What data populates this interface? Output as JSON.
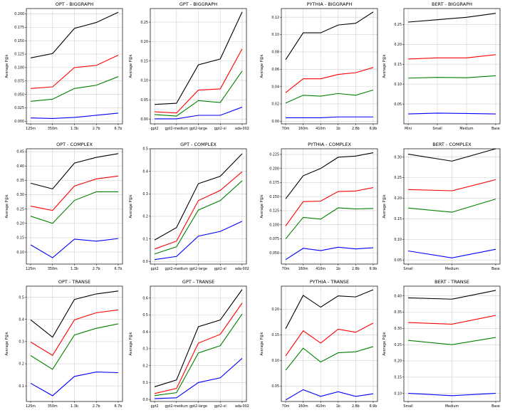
{
  "figure": {
    "colors": {
      "black": "#000000",
      "red": "#ff0000",
      "green": "#008000",
      "blue": "#0000ff"
    }
  },
  "chart_data": [
    {
      "type": "line",
      "title": "OPT - BIGGRAPH",
      "ylabel": "Average P@k",
      "categories": [
        "125m",
        "350m",
        "1.3b",
        "2.7b",
        "6.7b"
      ],
      "ylim": [
        -0.005,
        0.21
      ],
      "yticks": [
        0.0,
        0.025,
        0.05,
        0.075,
        0.1,
        0.125,
        0.15,
        0.175,
        0.2
      ],
      "yticklabels": [
        "0.000",
        "0.025",
        "0.050",
        "0.075",
        "0.100",
        "0.125",
        "0.150",
        "0.175",
        "0.200"
      ],
      "series": [
        {
          "name": "black",
          "color": "#000000",
          "values": [
            0.118,
            0.126,
            0.173,
            0.184,
            0.203
          ]
        },
        {
          "name": "red",
          "color": "#ff0000",
          "values": [
            0.061,
            0.064,
            0.1,
            0.104,
            0.123
          ]
        },
        {
          "name": "green",
          "color": "#008000",
          "values": [
            0.037,
            0.041,
            0.061,
            0.067,
            0.083
          ]
        },
        {
          "name": "blue",
          "color": "#0000ff",
          "values": [
            0.006,
            0.005,
            0.007,
            0.011,
            0.015
          ]
        }
      ]
    },
    {
      "type": "line",
      "title": "GPT - BIGGRAPH",
      "ylabel": "Average P@k",
      "categories": [
        "gpt2",
        "gpt2-medium",
        "gpt2-large",
        "gpt2-xl",
        "ada-002"
      ],
      "ylim": [
        -0.012,
        0.285
      ],
      "yticks": [
        0.0,
        0.05,
        0.1,
        0.15,
        0.2,
        0.25
      ],
      "yticklabels": [
        "0.00",
        "0.05",
        "0.10",
        "0.15",
        "0.20",
        "0.25"
      ],
      "series": [
        {
          "name": "black",
          "color": "#000000",
          "values": [
            0.038,
            0.041,
            0.14,
            0.155,
            0.276
          ]
        },
        {
          "name": "red",
          "color": "#ff0000",
          "values": [
            0.019,
            0.016,
            0.075,
            0.078,
            0.181
          ]
        },
        {
          "name": "green",
          "color": "#008000",
          "values": [
            0.012,
            0.008,
            0.048,
            0.043,
            0.124
          ]
        },
        {
          "name": "blue",
          "color": "#0000ff",
          "values": [
            0.001,
            0.001,
            0.01,
            0.01,
            0.031
          ]
        }
      ]
    },
    {
      "type": "line",
      "title": "PYTHIA - BIGGRAPH",
      "ylabel": "Average P@k",
      "categories": [
        "70m",
        "160m",
        "410m",
        "1b",
        "2.8b",
        "6.9b"
      ],
      "ylim": [
        -0.003,
        0.13
      ],
      "yticks": [
        0.0,
        0.02,
        0.04,
        0.06,
        0.08,
        0.1,
        0.12
      ],
      "yticklabels": [
        "0.00",
        "0.02",
        "0.04",
        "0.06",
        "0.08",
        "0.10",
        "0.12"
      ],
      "series": [
        {
          "name": "black",
          "color": "#000000",
          "values": [
            0.071,
            0.102,
            0.102,
            0.111,
            0.113,
            0.126
          ]
        },
        {
          "name": "red",
          "color": "#ff0000",
          "values": [
            0.033,
            0.049,
            0.049,
            0.054,
            0.056,
            0.062
          ]
        },
        {
          "name": "green",
          "color": "#008000",
          "values": [
            0.021,
            0.03,
            0.029,
            0.032,
            0.03,
            0.036
          ]
        },
        {
          "name": "blue",
          "color": "#0000ff",
          "values": [
            0.004,
            0.004,
            0.004,
            0.005,
            0.005,
            0.005
          ]
        }
      ]
    },
    {
      "type": "line",
      "title": "BERT - BIGGRAPH",
      "ylabel": "Average P@k",
      "categories": [
        "Mini",
        "Small",
        "Medium",
        "Base"
      ],
      "ylim": [
        0.0,
        0.29
      ],
      "yticks": [
        0.05,
        0.1,
        0.15,
        0.2,
        0.25
      ],
      "yticklabels": [
        "0.05",
        "0.10",
        "0.15",
        "0.20",
        "0.25"
      ],
      "series": [
        {
          "name": "black",
          "color": "#000000",
          "values": [
            0.256,
            0.262,
            0.268,
            0.278
          ]
        },
        {
          "name": "red",
          "color": "#ff0000",
          "values": [
            0.163,
            0.166,
            0.166,
            0.174
          ]
        },
        {
          "name": "green",
          "color": "#008000",
          "values": [
            0.115,
            0.117,
            0.116,
            0.121
          ]
        },
        {
          "name": "blue",
          "color": "#0000ff",
          "values": [
            0.025,
            0.027,
            0.026,
            0.025
          ]
        }
      ]
    },
    {
      "type": "line",
      "title": "OPT - COMPLEX",
      "ylabel": "Average P@k",
      "categories": [
        "125m",
        "350m",
        "1.3b",
        "2.7b",
        "6.7b"
      ],
      "ylim": [
        0.058,
        0.46
      ],
      "yticks": [
        0.1,
        0.15,
        0.2,
        0.25,
        0.3,
        0.35,
        0.4,
        0.45
      ],
      "yticklabels": [
        "0.10",
        "0.15",
        "0.20",
        "0.25",
        "0.30",
        "0.35",
        "0.40",
        "0.45"
      ],
      "series": [
        {
          "name": "black",
          "color": "#000000",
          "values": [
            0.34,
            0.32,
            0.41,
            0.43,
            0.443
          ]
        },
        {
          "name": "red",
          "color": "#ff0000",
          "values": [
            0.26,
            0.245,
            0.33,
            0.355,
            0.365
          ]
        },
        {
          "name": "green",
          "color": "#008000",
          "values": [
            0.225,
            0.2,
            0.28,
            0.31,
            0.31
          ]
        },
        {
          "name": "blue",
          "color": "#0000ff",
          "values": [
            0.125,
            0.08,
            0.145,
            0.138,
            0.147
          ]
        }
      ]
    },
    {
      "type": "line",
      "title": "GPT - COMPLEX",
      "ylabel": "Average P@k",
      "categories": [
        "gpt2",
        "gpt2-medium",
        "gpt2-large",
        "gpt2-xl",
        "ada-002"
      ],
      "ylim": [
        -0.012,
        0.5
      ],
      "yticks": [
        0.0,
        0.1,
        0.2,
        0.3,
        0.4,
        0.5
      ],
      "yticklabels": [
        "0.0",
        "0.1",
        "0.2",
        "0.3",
        "0.4",
        "0.5"
      ],
      "series": [
        {
          "name": "black",
          "color": "#000000",
          "values": [
            0.095,
            0.15,
            0.345,
            0.378,
            0.478
          ]
        },
        {
          "name": "red",
          "color": "#ff0000",
          "values": [
            0.055,
            0.09,
            0.27,
            0.315,
            0.398
          ]
        },
        {
          "name": "green",
          "color": "#008000",
          "values": [
            0.033,
            0.065,
            0.228,
            0.27,
            0.358
          ]
        },
        {
          "name": "blue",
          "color": "#0000ff",
          "values": [
            0.008,
            0.022,
            0.112,
            0.133,
            0.178
          ]
        }
      ]
    },
    {
      "type": "line",
      "title": "PYTHIA - COMPLEX",
      "ylabel": "Average P@k",
      "categories": [
        "70m",
        "160m",
        "410m",
        "1b",
        "2.8b",
        "6.9b"
      ],
      "ylim": [
        0.03,
        0.235
      ],
      "yticks": [
        0.05,
        0.075,
        0.1,
        0.125,
        0.15,
        0.175,
        0.2,
        0.225
      ],
      "yticklabels": [
        "0.050",
        "0.075",
        "0.100",
        "0.125",
        "0.150",
        "0.175",
        "0.200",
        "0.225"
      ],
      "series": [
        {
          "name": "black",
          "color": "#000000",
          "values": [
            0.146,
            0.187,
            0.2,
            0.22,
            0.222,
            0.228
          ]
        },
        {
          "name": "red",
          "color": "#ff0000",
          "values": [
            0.098,
            0.141,
            0.142,
            0.159,
            0.16,
            0.166
          ]
        },
        {
          "name": "green",
          "color": "#008000",
          "values": [
            0.075,
            0.113,
            0.11,
            0.13,
            0.128,
            0.129
          ]
        },
        {
          "name": "blue",
          "color": "#0000ff",
          "values": [
            0.038,
            0.058,
            0.054,
            0.06,
            0.057,
            0.059
          ]
        }
      ]
    },
    {
      "type": "line",
      "title": "BERT - COMPLEX",
      "ylabel": "Average P@k",
      "categories": [
        "Small",
        "Medium",
        "Base"
      ],
      "ylim": [
        0.04,
        0.32
      ],
      "yticks": [
        0.05,
        0.1,
        0.15,
        0.2,
        0.25,
        0.3
      ],
      "yticklabels": [
        "0.05",
        "0.10",
        "0.15",
        "0.20",
        "0.25",
        "0.30"
      ],
      "series": [
        {
          "name": "black",
          "color": "#000000",
          "values": [
            0.307,
            0.29,
            0.32
          ]
        },
        {
          "name": "red",
          "color": "#ff0000",
          "values": [
            0.221,
            0.218,
            0.245
          ]
        },
        {
          "name": "green",
          "color": "#008000",
          "values": [
            0.176,
            0.166,
            0.198
          ]
        },
        {
          "name": "blue",
          "color": "#0000ff",
          "values": [
            0.072,
            0.055,
            0.076
          ]
        }
      ]
    },
    {
      "type": "line",
      "title": "OPT - TRANSE",
      "ylabel": "Average P@k",
      "categories": [
        "125m",
        "350m",
        "1.3b",
        "2.7b",
        "6.7b"
      ],
      "ylim": [
        0.03,
        0.55
      ],
      "yticks": [
        0.1,
        0.2,
        0.3,
        0.4,
        0.5
      ],
      "yticklabels": [
        "0.1",
        "0.2",
        "0.3",
        "0.4",
        "0.5"
      ],
      "series": [
        {
          "name": "black",
          "color": "#000000",
          "values": [
            0.398,
            0.32,
            0.49,
            0.515,
            0.528
          ]
        },
        {
          "name": "red",
          "color": "#ff0000",
          "values": [
            0.298,
            0.238,
            0.398,
            0.43,
            0.443
          ]
        },
        {
          "name": "green",
          "color": "#008000",
          "values": [
            0.237,
            0.175,
            0.33,
            0.36,
            0.38
          ]
        },
        {
          "name": "blue",
          "color": "#0000ff",
          "values": [
            0.112,
            0.056,
            0.143,
            0.163,
            0.16
          ]
        }
      ]
    },
    {
      "type": "line",
      "title": "GPT - TRANSE",
      "ylabel": "Average P@k",
      "categories": [
        "gpt2",
        "gpt2-medium",
        "gpt2-large",
        "gpt2-xl",
        "ada-002"
      ],
      "ylim": [
        -0.012,
        0.67
      ],
      "yticks": [
        0.0,
        0.1,
        0.2,
        0.3,
        0.4,
        0.5,
        0.6
      ],
      "yticklabels": [
        "0.0",
        "0.1",
        "0.2",
        "0.3",
        "0.4",
        "0.5",
        "0.6"
      ],
      "series": [
        {
          "name": "black",
          "color": "#000000",
          "values": [
            0.075,
            0.115,
            0.43,
            0.47,
            0.65
          ]
        },
        {
          "name": "red",
          "color": "#ff0000",
          "values": [
            0.035,
            0.065,
            0.333,
            0.385,
            0.57
          ]
        },
        {
          "name": "green",
          "color": "#008000",
          "values": [
            0.023,
            0.04,
            0.275,
            0.318,
            0.505
          ]
        },
        {
          "name": "blue",
          "color": "#0000ff",
          "values": [
            0.005,
            0.01,
            0.1,
            0.128,
            0.243
          ]
        }
      ]
    },
    {
      "type": "line",
      "title": "PYTHIA - TRANSE",
      "ylabel": "Average P@k",
      "categories": [
        "70m",
        "160m",
        "410m",
        "1b",
        "2.8b",
        "6.9b"
      ],
      "ylim": [
        0.02,
        0.245
      ],
      "yticks": [
        0.05,
        0.1,
        0.15,
        0.2
      ],
      "yticklabels": [
        "0.05",
        "0.10",
        "0.15",
        "0.20"
      ],
      "series": [
        {
          "name": "black",
          "color": "#000000",
          "values": [
            0.162,
            0.227,
            0.204,
            0.226,
            0.224,
            0.238
          ]
        },
        {
          "name": "red",
          "color": "#ff0000",
          "values": [
            0.109,
            0.158,
            0.134,
            0.161,
            0.155,
            0.173
          ]
        },
        {
          "name": "green",
          "color": "#008000",
          "values": [
            0.081,
            0.124,
            0.097,
            0.115,
            0.117,
            0.127
          ]
        },
        {
          "name": "blue",
          "color": "#0000ff",
          "values": [
            0.023,
            0.043,
            0.03,
            0.039,
            0.03,
            0.035
          ]
        }
      ]
    },
    {
      "type": "line",
      "title": "BERT - TRANSE",
      "ylabel": "Average P@k",
      "categories": [
        "Small",
        "Medium",
        "Base"
      ],
      "ylim": [
        0.075,
        0.43
      ],
      "yticks": [
        0.1,
        0.15,
        0.2,
        0.25,
        0.3,
        0.35,
        0.4
      ],
      "yticklabels": [
        "0.10",
        "0.15",
        "0.20",
        "0.25",
        "0.30",
        "0.35",
        "0.40"
      ],
      "series": [
        {
          "name": "black",
          "color": "#000000",
          "values": [
            0.394,
            0.39,
            0.417
          ]
        },
        {
          "name": "red",
          "color": "#ff0000",
          "values": [
            0.318,
            0.313,
            0.34
          ]
        },
        {
          "name": "green",
          "color": "#008000",
          "values": [
            0.263,
            0.25,
            0.272
          ]
        },
        {
          "name": "blue",
          "color": "#0000ff",
          "values": [
            0.1,
            0.093,
            0.1
          ]
        }
      ]
    }
  ]
}
